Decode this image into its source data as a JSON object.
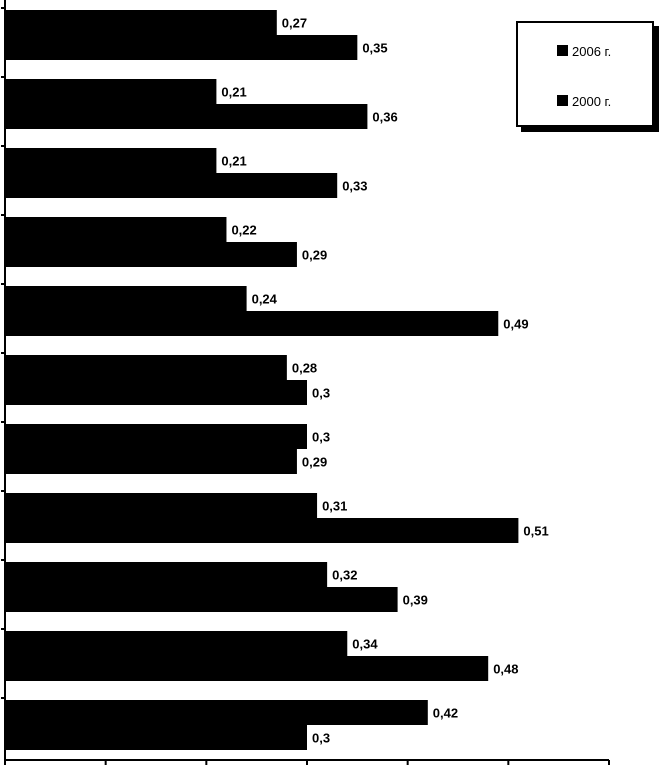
{
  "chart_data": {
    "type": "bar",
    "orientation": "horizontal",
    "title": "",
    "xlabel": "",
    "ylabel": "",
    "xlim": [
      0,
      0.6
    ],
    "x_ticks": [
      0,
      0.1,
      0.2,
      0.3,
      0.4,
      0.5,
      0.6
    ],
    "grid": false,
    "legend_position": "top-right",
    "categories": [
      "",
      "",
      "",
      "",
      "",
      "",
      "",
      "",
      "",
      "",
      ""
    ],
    "series": [
      {
        "name": "2006 г.",
        "color": "#000000",
        "values": [
          0.27,
          0.21,
          0.21,
          0.22,
          0.24,
          0.28,
          0.3,
          0.31,
          0.32,
          0.34,
          0.42
        ],
        "labels": [
          "0,27",
          "0,21",
          "0,21",
          "0,22",
          "0,24",
          "0,28",
          "0,3",
          "0,31",
          "0,32",
          "0,34",
          "0,42"
        ]
      },
      {
        "name": "2000 г.",
        "color": "#000000",
        "values": [
          0.35,
          0.36,
          0.33,
          0.29,
          0.49,
          0.3,
          0.29,
          0.51,
          0.39,
          0.48,
          0.3
        ],
        "labels": [
          "0,35",
          "0,36",
          "0,33",
          "0,29",
          "0,49",
          "0,3",
          "0,29",
          "0,51",
          "0,39",
          "0,48",
          "0,3"
        ]
      }
    ]
  }
}
